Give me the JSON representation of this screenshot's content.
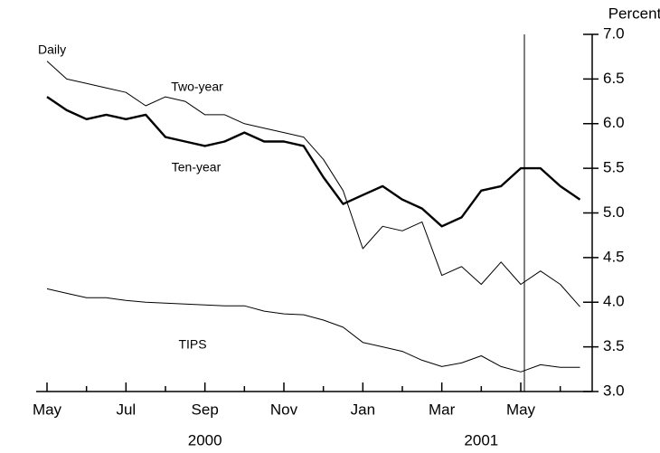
{
  "chart_data": {
    "type": "line",
    "subtitle": "Daily",
    "y_axis_label": "Percent",
    "categories": [
      "May",
      null,
      null,
      null,
      "Jul",
      null,
      null,
      null,
      "Sep",
      null,
      null,
      null,
      "Nov",
      null,
      null,
      null,
      "Jan",
      null,
      null,
      null,
      "Mar",
      null,
      null,
      null,
      "May",
      null,
      null,
      null
    ],
    "year_labels": [
      "2000",
      "2001"
    ],
    "series": [
      {
        "name": "Two-year",
        "color": "#000000",
        "values": [
          6.7,
          6.5,
          6.45,
          6.4,
          6.35,
          6.2,
          6.3,
          6.25,
          6.1,
          6.1,
          6.0,
          5.95,
          5.9,
          5.85,
          5.6,
          5.25,
          4.6,
          4.85,
          4.8,
          4.9,
          4.3,
          4.4,
          4.2,
          4.45,
          4.2,
          4.35,
          4.2,
          3.95
        ]
      },
      {
        "name": "Ten-year",
        "color": "#000000",
        "values": [
          6.3,
          6.15,
          6.05,
          6.1,
          6.05,
          6.1,
          5.85,
          5.8,
          5.75,
          5.8,
          5.9,
          5.8,
          5.8,
          5.75,
          5.4,
          5.1,
          5.2,
          5.3,
          5.15,
          5.05,
          4.85,
          4.95,
          5.25,
          5.3,
          5.5,
          5.5,
          5.3,
          5.15
        ]
      },
      {
        "name": "TIPS",
        "color": "#000000",
        "values": [
          4.15,
          4.1,
          4.05,
          4.05,
          4.02,
          4.0,
          3.99,
          3.98,
          3.97,
          3.96,
          3.96,
          3.9,
          3.87,
          3.86,
          3.8,
          3.72,
          3.55,
          3.5,
          3.45,
          3.35,
          3.28,
          3.32,
          3.4,
          3.28,
          3.22,
          3.3,
          3.27,
          3.27
        ]
      }
    ],
    "ylim": [
      3,
      7
    ],
    "yticks": [
      {
        "value": 3,
        "label": "3.0"
      },
      3.5,
      {
        "value": 4,
        "label": "4.0"
      },
      4.5,
      {
        "value": 5,
        "label": "5.0"
      },
      5.5,
      {
        "value": 6,
        "label": "6.0"
      },
      6.5,
      {
        "value": 7,
        "label": "7.0"
      }
    ]
  }
}
